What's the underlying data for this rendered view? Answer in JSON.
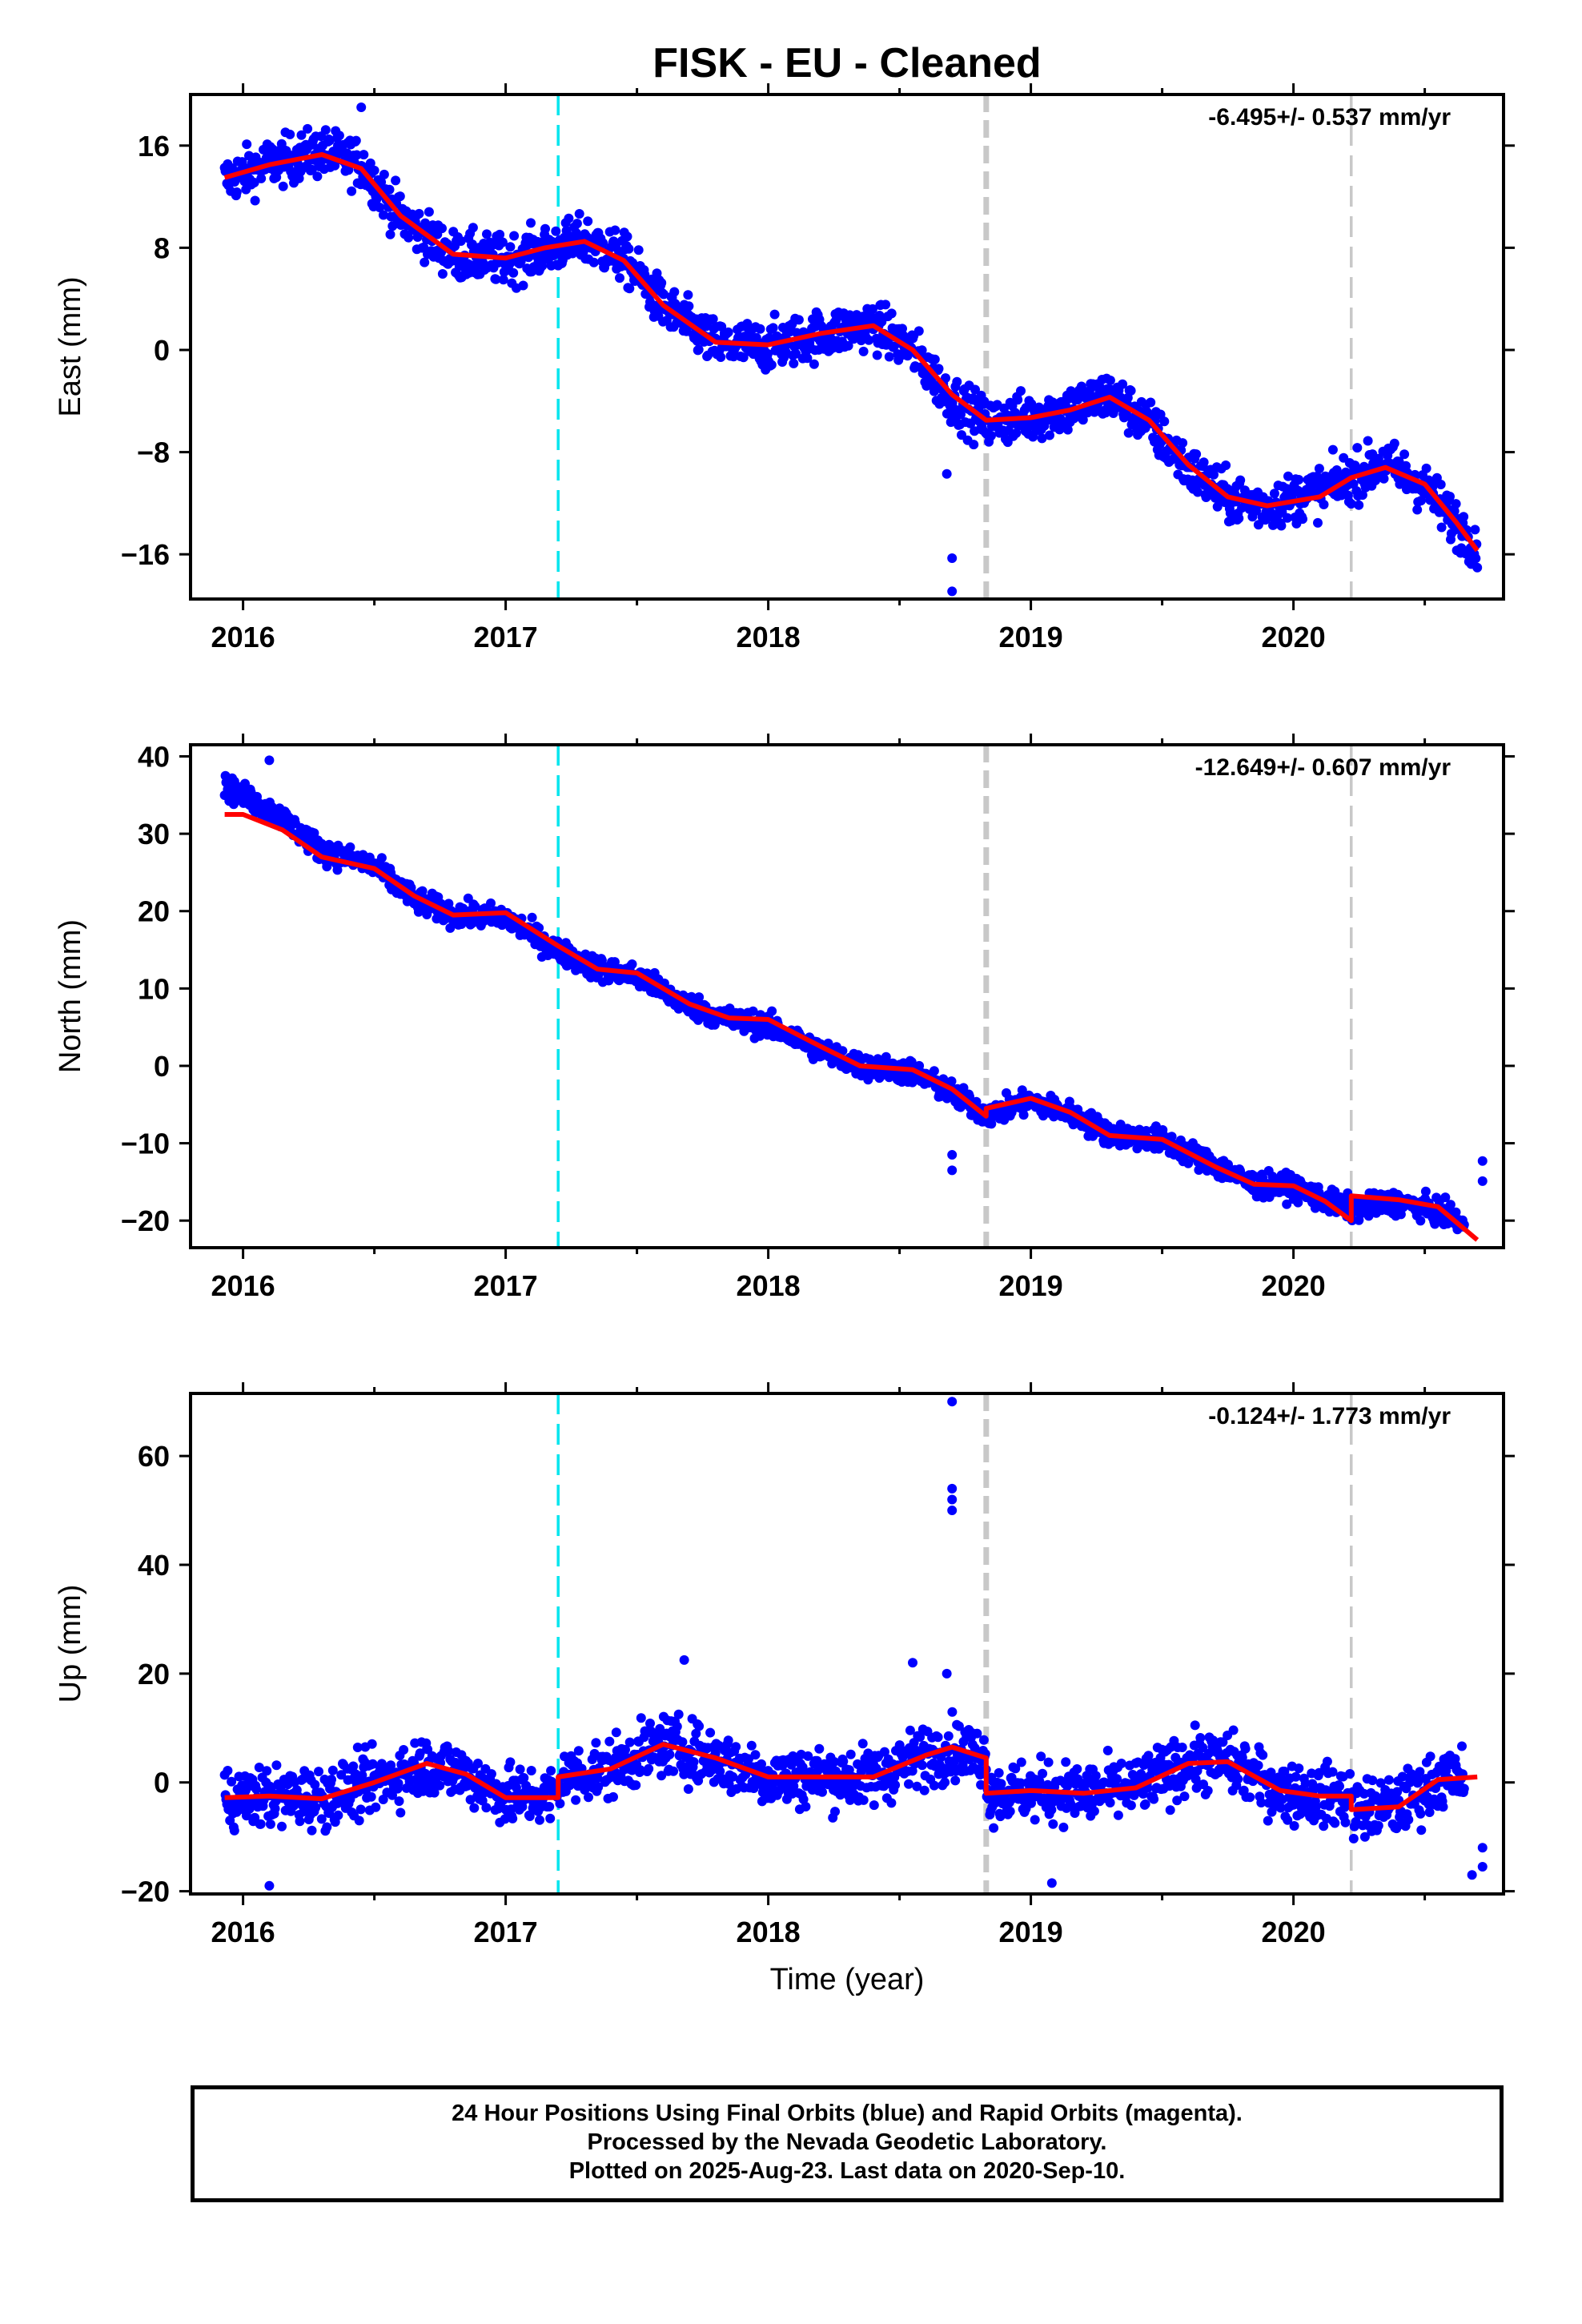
{
  "title": "FISK  - EU - Cleaned",
  "xlabel": "Time (year)",
  "footer": {
    "line1": "24 Hour Positions Using Final Orbits (blue) and Rapid Orbits (magenta).",
    "line2": "Processed by the Nevada Geodetic Laboratory.",
    "line3": "Plotted on 2025-Aug-23. Last data on 2020-Sep-10."
  },
  "colors": {
    "final_orbits": "#0000ff",
    "model_fit": "#ff0000",
    "antenna_change_line": "#00e5ee",
    "equipment_change_line": "#c8c8c8",
    "frame": "#000000"
  },
  "chart_data": [
    {
      "type": "scatter",
      "component": "east",
      "ylabel": "East (mm)",
      "rate_label": "-6.495+/- 0.537 mm/yr",
      "xlim": [
        2015.8,
        2020.8
      ],
      "ylim": [
        -19.5,
        20
      ],
      "xticks": [
        2016,
        2017,
        2018,
        2019,
        2020
      ],
      "xtick_labels": [
        "2016",
        "2017",
        "2018",
        "2019",
        "2020"
      ],
      "yticks": [
        16,
        8,
        0,
        -8,
        -16
      ],
      "ytick_labels": [
        "16",
        "8",
        "0",
        "−8",
        "−16"
      ],
      "vlines": [
        {
          "x": 2017.2,
          "style": "antenna_change_line"
        },
        {
          "x": 2018.83,
          "style": "equipment_change_line",
          "thick": true
        },
        {
          "x": 2020.22,
          "style": "equipment_change_line"
        }
      ],
      "fit": {
        "x": [
          2015.93,
          2016.1,
          2016.3,
          2016.45,
          2016.6,
          2016.8,
          2017.0,
          2017.15,
          2017.3,
          2017.45,
          2017.6,
          2017.8,
          2018.0,
          2018.2,
          2018.4,
          2018.55,
          2018.7,
          2018.83,
          2019.0,
          2019.15,
          2019.3,
          2019.45,
          2019.6,
          2019.75,
          2019.9,
          2020.1,
          2020.22,
          2020.35,
          2020.5,
          2020.62,
          2020.7
        ],
        "y": [
          13.5,
          14.5,
          15.3,
          14.2,
          10.5,
          7.5,
          7.2,
          8.0,
          8.5,
          7.0,
          3.5,
          0.6,
          0.4,
          1.3,
          1.9,
          0.0,
          -3.5,
          -5.5,
          -5.3,
          -4.7,
          -3.7,
          -5.5,
          -9.0,
          -11.5,
          -12.2,
          -11.5,
          -10.0,
          -9.2,
          -10.5,
          -13.5,
          -15.7
        ]
      },
      "series": [
        {
          "name": "Final Orbits",
          "trend": [
            [
              2015.93,
              13.3
            ],
            [
              2016.1,
              14.6
            ],
            [
              2016.3,
              15.5
            ],
            [
              2016.45,
              14.6
            ],
            [
              2016.6,
              10.4
            ],
            [
              2016.8,
              7.4
            ],
            [
              2017.0,
              7.0
            ],
            [
              2017.15,
              7.8
            ],
            [
              2017.3,
              8.6
            ],
            [
              2017.45,
              7.2
            ],
            [
              2017.6,
              3.4
            ],
            [
              2017.8,
              0.4
            ],
            [
              2018.0,
              0.3
            ],
            [
              2018.2,
              1.2
            ],
            [
              2018.4,
              2.0
            ],
            [
              2018.55,
              0.0
            ],
            [
              2018.7,
              -3.9
            ],
            [
              2018.83,
              -5.7
            ],
            [
              2019.0,
              -5.2
            ],
            [
              2019.15,
              -4.6
            ],
            [
              2019.3,
              -3.5
            ],
            [
              2019.45,
              -5.8
            ],
            [
              2019.6,
              -9.3
            ],
            [
              2019.75,
              -11.6
            ],
            [
              2019.9,
              -12.2
            ],
            [
              2020.1,
              -11.0
            ],
            [
              2020.22,
              -10.0
            ],
            [
              2020.35,
              -8.8
            ],
            [
              2020.5,
              -10.8
            ],
            [
              2020.62,
              -13.6
            ],
            [
              2020.7,
              -15.3
            ]
          ],
          "scatter_mm": 1.6,
          "outliers": [
            [
              2018.7,
              -16.3
            ],
            [
              2018.7,
              -18.9
            ],
            [
              2018.68,
              -9.7
            ],
            [
              2016.45,
              19
            ]
          ],
          "n": 1650
        }
      ]
    },
    {
      "type": "scatter",
      "component": "north",
      "ylabel": "North (mm)",
      "rate_label": "-12.649+/- 0.607 mm/yr",
      "xlim": [
        2015.8,
        2020.8
      ],
      "ylim": [
        -23.5,
        41.5
      ],
      "xticks": [
        2016,
        2017,
        2018,
        2019,
        2020
      ],
      "xtick_labels": [
        "2016",
        "2017",
        "2018",
        "2019",
        "2020"
      ],
      "yticks": [
        40,
        30,
        20,
        10,
        0,
        -10,
        -20
      ],
      "ytick_labels": [
        "40",
        "30",
        "20",
        "10",
        "0",
        "−10",
        "−20"
      ],
      "vlines": [
        {
          "x": 2017.2,
          "style": "antenna_change_line"
        },
        {
          "x": 2018.83,
          "style": "equipment_change_line",
          "thick": true
        },
        {
          "x": 2020.22,
          "style": "equipment_change_line"
        }
      ],
      "fit": {
        "x": [
          2015.93,
          2016.0,
          2016.15,
          2016.3,
          2016.5,
          2016.65,
          2016.8,
          2017.0,
          2017.2,
          2017.35,
          2017.5,
          2017.7,
          2017.85,
          2018.0,
          2018.2,
          2018.35,
          2018.55,
          2018.7,
          2018.83,
          2018.83,
          2019.0,
          2019.15,
          2019.3,
          2019.5,
          2019.7,
          2019.85,
          2020.0,
          2020.12,
          2020.22,
          2020.22,
          2020.4,
          2020.55,
          2020.7
        ],
        "y": [
          32.5,
          32.5,
          30.5,
          27.0,
          25.5,
          22.0,
          19.5,
          19.8,
          15.5,
          12.5,
          12.0,
          8.0,
          6.2,
          6.0,
          2.5,
          0.0,
          -0.5,
          -3.0,
          -6.5,
          -5.5,
          -4.2,
          -6.0,
          -9.0,
          -9.5,
          -13.0,
          -15.3,
          -15.5,
          -17.5,
          -20.0,
          -16.8,
          -17.3,
          -18.2,
          -22.5
        ]
      },
      "series": [
        {
          "name": "Final Orbits",
          "trend": [
            [
              2015.93,
              36
            ],
            [
              2016.0,
              35
            ],
            [
              2016.15,
              32
            ],
            [
              2016.3,
              27.8
            ],
            [
              2016.5,
              25.8
            ],
            [
              2016.65,
              21.5
            ],
            [
              2016.8,
              19.6
            ],
            [
              2017.0,
              19.2
            ],
            [
              2017.2,
              14.8
            ],
            [
              2017.35,
              12.6
            ],
            [
              2017.5,
              11.6
            ],
            [
              2017.7,
              7.8
            ],
            [
              2017.85,
              6.0
            ],
            [
              2018.0,
              5.2
            ],
            [
              2018.2,
              2.0
            ],
            [
              2018.35,
              0.0
            ],
            [
              2018.55,
              -0.8
            ],
            [
              2018.7,
              -3.6
            ],
            [
              2018.83,
              -6.3
            ],
            [
              2019.0,
              -4.6
            ],
            [
              2019.15,
              -6.2
            ],
            [
              2019.3,
              -8.8
            ],
            [
              2019.5,
              -9.6
            ],
            [
              2019.7,
              -12.8
            ],
            [
              2019.85,
              -15.4
            ],
            [
              2020.0,
              -15.6
            ],
            [
              2020.12,
              -17.4
            ],
            [
              2020.22,
              -18.5
            ],
            [
              2020.4,
              -17.6
            ],
            [
              2020.55,
              -18.8
            ],
            [
              2020.65,
              -20.5
            ]
          ],
          "scatter_mm": 1.3,
          "outliers": [
            [
              2018.7,
              -11.5
            ],
            [
              2018.7,
              -13.5
            ],
            [
              2016.1,
              39.5
            ],
            [
              2020.72,
              -12.3
            ],
            [
              2020.72,
              -14.9
            ]
          ],
          "n": 1650
        }
      ]
    },
    {
      "type": "scatter",
      "component": "up",
      "ylabel": "Up (mm)",
      "rate_label": "-0.124+/- 1.773 mm/yr",
      "xlim": [
        2015.8,
        2020.8
      ],
      "ylim": [
        -20.5,
        71.5
      ],
      "xticks": [
        2016,
        2017,
        2018,
        2019,
        2020
      ],
      "xtick_labels": [
        "2016",
        "2017",
        "2018",
        "2019",
        "2020"
      ],
      "yticks": [
        60,
        40,
        20,
        0,
        -20
      ],
      "ytick_labels": [
        "60",
        "40",
        "20",
        "0",
        "−20"
      ],
      "vlines": [
        {
          "x": 2017.2,
          "style": "antenna_change_line"
        },
        {
          "x": 2018.83,
          "style": "equipment_change_line",
          "thick": true
        },
        {
          "x": 2020.22,
          "style": "equipment_change_line"
        }
      ],
      "fit": {
        "x": [
          2015.93,
          2016.1,
          2016.3,
          2016.5,
          2016.7,
          2016.85,
          2017.0,
          2017.2,
          2017.2,
          2017.4,
          2017.6,
          2017.8,
          2018.0,
          2018.2,
          2018.4,
          2018.6,
          2018.7,
          2018.83,
          2018.83,
          2019.0,
          2019.2,
          2019.4,
          2019.6,
          2019.75,
          2019.95,
          2020.1,
          2020.22,
          2020.22,
          2020.4,
          2020.55,
          2020.7
        ],
        "y": [
          -2.8,
          -2.5,
          -3.0,
          0.0,
          3.5,
          1.5,
          -2.8,
          -2.8,
          1.0,
          2.5,
          7.0,
          4.5,
          1.0,
          1.0,
          1.0,
          5.0,
          6.5,
          4.5,
          -2.0,
          -1.5,
          -2.0,
          -1.0,
          3.5,
          3.8,
          -1.5,
          -2.5,
          -2.5,
          -5.0,
          -4.5,
          0.5,
          1.0
        ]
      },
      "series": [
        {
          "name": "Final Orbits",
          "trend": [
            [
              2015.93,
              -3
            ],
            [
              2016.1,
              -2.6
            ],
            [
              2016.3,
              -2.8
            ],
            [
              2016.5,
              0
            ],
            [
              2016.7,
              3.4
            ],
            [
              2016.85,
              1.4
            ],
            [
              2017.0,
              -2.6
            ],
            [
              2017.2,
              -2.6
            ],
            [
              2017.21,
              1.0
            ],
            [
              2017.4,
              2.6
            ],
            [
              2017.6,
              7.0
            ],
            [
              2017.8,
              4.4
            ],
            [
              2018.0,
              1.0
            ],
            [
              2018.2,
              1.0
            ],
            [
              2018.4,
              1.0
            ],
            [
              2018.6,
              5.0
            ],
            [
              2018.7,
              6.4
            ],
            [
              2018.83,
              4.4
            ],
            [
              2018.84,
              -2.0
            ],
            [
              2019.0,
              -1.6
            ],
            [
              2019.2,
              -2.0
            ],
            [
              2019.4,
              -1.0
            ],
            [
              2019.6,
              3.6
            ],
            [
              2019.75,
              3.8
            ],
            [
              2019.95,
              -1.6
            ],
            [
              2020.1,
              -2.5
            ],
            [
              2020.22,
              -2.5
            ],
            [
              2020.23,
              -5.0
            ],
            [
              2020.4,
              -4.4
            ],
            [
              2020.55,
              0.4
            ],
            [
              2020.65,
              1.0
            ]
          ],
          "scatter_mm": 4.6,
          "outliers": [
            [
              2018.7,
              70
            ],
            [
              2018.7,
              54
            ],
            [
              2018.7,
              52
            ],
            [
              2018.7,
              50
            ],
            [
              2018.68,
              20
            ],
            [
              2018.55,
              22
            ],
            [
              2017.68,
              22.5
            ],
            [
              2019.08,
              -18.5
            ],
            [
              2016.1,
              -19
            ],
            [
              2020.72,
              -12
            ],
            [
              2020.72,
              -15.5
            ],
            [
              2020.68,
              -17
            ]
          ],
          "n": 1650
        }
      ]
    }
  ]
}
